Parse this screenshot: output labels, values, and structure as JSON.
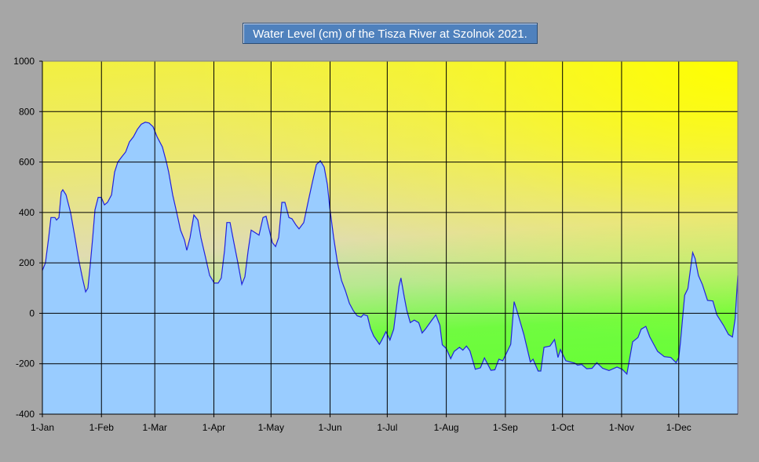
{
  "chart_data": {
    "type": "area",
    "title": "Water Level (cm) of the Tisza River at Szolnok 2021.",
    "xlabel": "",
    "ylabel": "",
    "ylim": [
      -400,
      1000
    ],
    "xlim_days": [
      0,
      365
    ],
    "yticks": [
      1000,
      800,
      600,
      400,
      200,
      0,
      -200,
      -400
    ],
    "xticks": [
      {
        "label": "1-Jan",
        "day": 0
      },
      {
        "label": "1-Feb",
        "day": 31
      },
      {
        "label": "1-Mar",
        "day": 59
      },
      {
        "label": "1-Apr",
        "day": 90
      },
      {
        "label": "1-May",
        "day": 120
      },
      {
        "label": "1-Jun",
        "day": 151
      },
      {
        "label": "1-Jul",
        "day": 181
      },
      {
        "label": "1-Aug",
        "day": 212
      },
      {
        "label": "1-Sep",
        "day": 243
      },
      {
        "label": "1-Oct",
        "day": 273
      },
      {
        "label": "1-Nov",
        "day": 304
      },
      {
        "label": "1-Dec",
        "day": 334
      }
    ],
    "grid": true,
    "legend": "none",
    "colors": {
      "fill": "#99ccff",
      "line": "#2222dd",
      "grid": "#000000"
    },
    "series": [
      {
        "name": "Water Level (cm)",
        "points": [
          [
            0,
            170
          ],
          [
            1.6,
            200
          ],
          [
            3.3,
            300
          ],
          [
            4.5,
            380
          ],
          [
            6.6,
            380
          ],
          [
            7.4,
            370
          ],
          [
            8.7,
            380
          ],
          [
            9.9,
            480
          ],
          [
            10.7,
            490
          ],
          [
            12.4,
            470
          ],
          [
            14.8,
            400
          ],
          [
            16.9,
            310
          ],
          [
            19,
            215
          ],
          [
            21,
            140
          ],
          [
            22.7,
            85
          ],
          [
            23.9,
            100
          ],
          [
            25.1,
            190
          ],
          [
            26.4,
            300
          ],
          [
            27.6,
            410
          ],
          [
            29.3,
            460
          ],
          [
            30.9,
            460
          ],
          [
            32.6,
            430
          ],
          [
            34.2,
            440
          ],
          [
            36.3,
            470
          ],
          [
            37.9,
            560
          ],
          [
            39.6,
            600
          ],
          [
            41.6,
            620
          ],
          [
            43.7,
            640
          ],
          [
            45.7,
            680
          ],
          [
            47.8,
            700
          ],
          [
            49.9,
            730
          ],
          [
            51.9,
            750
          ],
          [
            54,
            758
          ],
          [
            56,
            755
          ],
          [
            58.1,
            740
          ],
          [
            60.2,
            700
          ],
          [
            63,
            660
          ],
          [
            65.1,
            600
          ],
          [
            66.3,
            560
          ],
          [
            68.4,
            470
          ],
          [
            70.5,
            400
          ],
          [
            72.5,
            330
          ],
          [
            74.6,
            290
          ],
          [
            75.8,
            250
          ],
          [
            77.5,
            300
          ],
          [
            79.5,
            390
          ],
          [
            81.6,
            370
          ],
          [
            83.2,
            300
          ],
          [
            85.7,
            220
          ],
          [
            87.8,
            150
          ],
          [
            90.2,
            120
          ],
          [
            92.3,
            120
          ],
          [
            93.9,
            140
          ],
          [
            95.6,
            250
          ],
          [
            96.8,
            360
          ],
          [
            98.5,
            360
          ],
          [
            100.5,
            280
          ],
          [
            102.6,
            200
          ],
          [
            104.7,
            115
          ],
          [
            106.3,
            145
          ],
          [
            108,
            250
          ],
          [
            109.6,
            330
          ],
          [
            111.7,
            320
          ],
          [
            113.7,
            310
          ],
          [
            115.8,
            380
          ],
          [
            117.4,
            385
          ],
          [
            119.1,
            330
          ],
          [
            120.7,
            280
          ],
          [
            122.4,
            265
          ],
          [
            124,
            300
          ],
          [
            125.7,
            440
          ],
          [
            127.3,
            440
          ],
          [
            129.4,
            380
          ],
          [
            131,
            375
          ],
          [
            133.1,
            350
          ],
          [
            134.7,
            335
          ],
          [
            137.2,
            360
          ],
          [
            139.7,
            450
          ],
          [
            141.7,
            520
          ],
          [
            143.8,
            590
          ],
          [
            145.9,
            605
          ],
          [
            147.9,
            580
          ],
          [
            149.6,
            510
          ],
          [
            150.8,
            420
          ],
          [
            152.9,
            300
          ],
          [
            154.9,
            200
          ],
          [
            157,
            130
          ],
          [
            159,
            90
          ],
          [
            161.1,
            40
          ],
          [
            163.2,
            10
          ],
          [
            165.2,
            -10
          ],
          [
            167.3,
            -15
          ],
          [
            168.5,
            -5
          ],
          [
            170.6,
            -10
          ],
          [
            172.2,
            -60
          ],
          [
            173.9,
            -90
          ],
          [
            176.9,
            -123
          ],
          [
            178.2,
            -105
          ],
          [
            180.3,
            -73
          ],
          [
            182.4,
            -106
          ],
          [
            184.4,
            -63
          ],
          [
            187.2,
            108
          ],
          [
            188.2,
            140
          ],
          [
            190,
            62
          ],
          [
            191.3,
            10
          ],
          [
            193.1,
            -37
          ],
          [
            195.2,
            -27
          ],
          [
            197.5,
            -37
          ],
          [
            199.3,
            -78
          ],
          [
            201,
            -63
          ],
          [
            204.4,
            -27
          ],
          [
            206.5,
            -6
          ],
          [
            208.6,
            -47
          ],
          [
            209.9,
            -125
          ],
          [
            212,
            -140
          ],
          [
            214.3,
            -180
          ],
          [
            216.1,
            -151
          ],
          [
            218.9,
            -135
          ],
          [
            220.7,
            -146
          ],
          [
            222.6,
            -130
          ],
          [
            224.4,
            -149
          ],
          [
            227.2,
            -222
          ],
          [
            229.9,
            -216
          ],
          [
            232,
            -177
          ],
          [
            235.4,
            -226
          ],
          [
            237.5,
            -224
          ],
          [
            239.6,
            -182
          ],
          [
            241.6,
            -188
          ],
          [
            243.7,
            -156
          ],
          [
            245.8,
            -123
          ],
          [
            247.6,
            46
          ],
          [
            249.9,
            -11
          ],
          [
            252.7,
            -84
          ],
          [
            256.1,
            -193
          ],
          [
            257.5,
            -182
          ],
          [
            260.2,
            -229
          ],
          [
            261.6,
            -229
          ],
          [
            263.3,
            -135
          ],
          [
            266.4,
            -130
          ],
          [
            268.8,
            -104
          ],
          [
            270.6,
            -175
          ],
          [
            271.9,
            -144
          ],
          [
            274.7,
            -188
          ],
          [
            279.5,
            -198
          ],
          [
            280.9,
            -206
          ],
          [
            283,
            -203
          ],
          [
            285.7,
            -220
          ],
          [
            288.5,
            -218
          ],
          [
            291,
            -196
          ],
          [
            294,
            -218
          ],
          [
            297.4,
            -227
          ],
          [
            301.6,
            -213
          ],
          [
            304.3,
            -222
          ],
          [
            306.8,
            -241
          ],
          [
            309.8,
            -113
          ],
          [
            312.6,
            -96
          ],
          [
            314.3,
            -63
          ],
          [
            316.7,
            -52
          ],
          [
            318.8,
            -94
          ],
          [
            322.9,
            -151
          ],
          [
            326.4,
            -172
          ],
          [
            329.8,
            -175
          ],
          [
            332.6,
            -196
          ],
          [
            334,
            -175
          ],
          [
            334.9,
            -115
          ],
          [
            337.1,
            72
          ],
          [
            338.8,
            98
          ],
          [
            341.3,
            241
          ],
          [
            342.6,
            217
          ],
          [
            344.3,
            150
          ],
          [
            346.4,
            114
          ],
          [
            349.1,
            51
          ],
          [
            351.9,
            49
          ],
          [
            354,
            -6
          ],
          [
            357.4,
            -47
          ],
          [
            360.1,
            -84
          ],
          [
            362.2,
            -94
          ],
          [
            363.6,
            -21
          ],
          [
            365,
            150
          ]
        ]
      }
    ]
  }
}
